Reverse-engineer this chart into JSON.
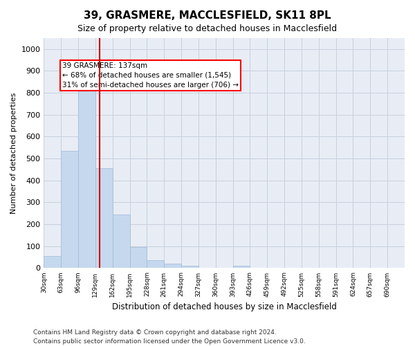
{
  "title": "39, GRASMERE, MACCLESFIELD, SK11 8PL",
  "subtitle": "Size of property relative to detached houses in Macclesfield",
  "xlabel": "Distribution of detached houses by size in Macclesfield",
  "ylabel": "Number of detached properties",
  "bar_color": "#c5d8ed",
  "bar_edgecolor": "#a0b8d8",
  "background_color": "#ffffff",
  "grid_color": "#c8d0dc",
  "annotation_box_text": "39 GRASMERE: 137sqm\n← 68% of detached houses are smaller (1,545)\n31% of semi-detached houses are larger (706) →",
  "vline_x": 137,
  "vline_color": "#cc0000",
  "categories": [
    "30sqm",
    "63sqm",
    "96sqm",
    "129sqm",
    "162sqm",
    "195sqm",
    "228sqm",
    "261sqm",
    "294sqm",
    "327sqm",
    "360sqm",
    "393sqm",
    "426sqm",
    "459sqm",
    "492sqm",
    "525sqm",
    "558sqm",
    "591sqm",
    "624sqm",
    "657sqm",
    "690sqm"
  ],
  "bin_edges": [
    30,
    63,
    96,
    129,
    162,
    195,
    228,
    261,
    294,
    327,
    360,
    393,
    426,
    459,
    492,
    525,
    558,
    591,
    624,
    657,
    690
  ],
  "values": [
    55,
    535,
    830,
    455,
    245,
    95,
    35,
    20,
    10,
    0,
    0,
    10,
    0,
    0,
    0,
    0,
    0,
    0,
    0,
    0,
    0
  ],
  "ylim": [
    0,
    1050
  ],
  "yticks": [
    0,
    100,
    200,
    300,
    400,
    500,
    600,
    700,
    800,
    900,
    1000
  ],
  "footnote1": "Contains HM Land Registry data © Crown copyright and database right 2024.",
  "footnote2": "Contains public sector information licensed under the Open Government Licence v3.0."
}
